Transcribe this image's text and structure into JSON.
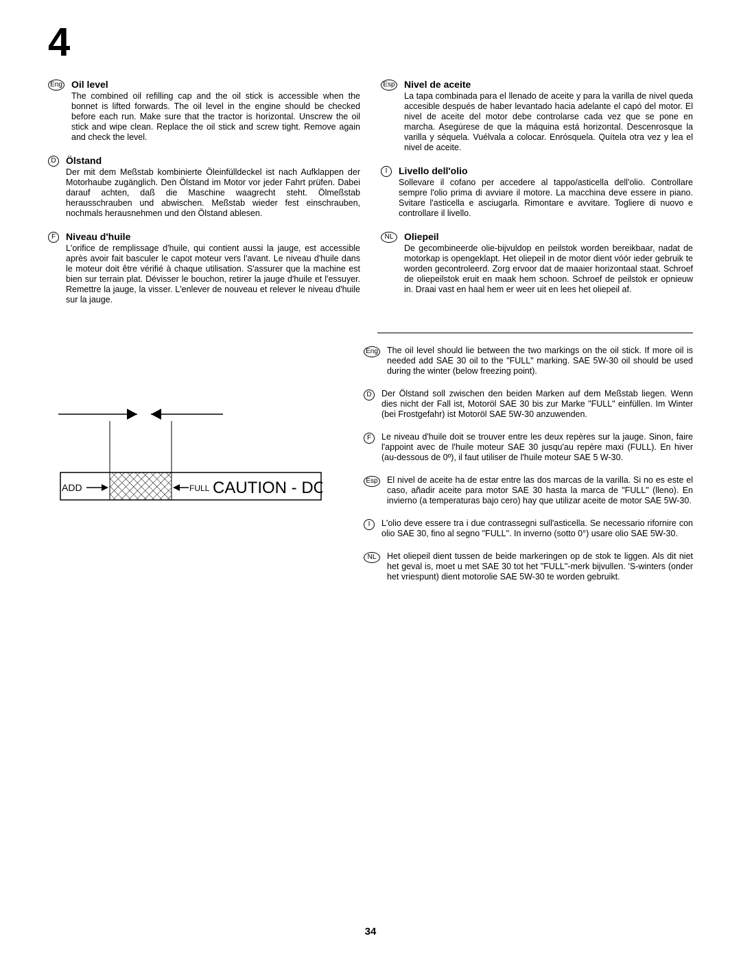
{
  "chapter": "4",
  "page_number": "34",
  "left_sections": [
    {
      "lang": "Eng",
      "shape": "oval",
      "heading": "Oil level",
      "text": "The combined oil refilling cap and the oil stick is accessible when the bonnet is lifted forwards. The oil level in the engine should be checked before each run. Make sure that the tractor is horizontal. Unscrew the oil stick and wipe clean. Replace the oil stick and screw tight. Remove again and check the level."
    },
    {
      "lang": "D",
      "shape": "round",
      "heading": "Ölstand",
      "text": "Der mit dem Meßstab kombinierte Öleinfülldeckel ist nach Aufklappen der Motorhaube zugänglich. Den Ölstand im Motor vor jeder Fahrt prüfen. Dabei darauf achten, daß die Maschine waagrecht steht. Ölmeßstab herausschrauben und abwischen. Meßstab wieder fest einschrauben, nochmals herausnehmen und den Ölstand ablesen."
    },
    {
      "lang": "F",
      "shape": "round",
      "heading": "Niveau d'huile",
      "text": "L'orifice de remplissage d'huile, qui contient aussi la jauge, est accessible après avoir fait basculer le capot moteur vers l'avant. Le niveau d'huile dans le moteur doit être vérifié à chaque utilisation. S'assurer que la machine est bien sur terrain plat. Dévisser le bouchon, retirer la jauge d'huile et l'essuyer. Remettre la jauge, la visser. L'enlever de nouveau et relever le niveau d'huile sur la jauge."
    }
  ],
  "right_sections": [
    {
      "lang": "Esp",
      "shape": "oval",
      "heading": "Nivel de aceite",
      "text": "La tapa combinada para el llenado de aceite y para la varilla de nivel queda accesible después de haber levantado hacia adelante el capó del motor. El nivel de aceite del motor debe controlarse cada vez que se pone en marcha. Asegúrese de que la máquina está horizontal. Descenrosque la varilla y séquela. Vuélvala a colocar. Enrósquela. Quítela otra vez y lea el nivel de aceite."
    },
    {
      "lang": "I",
      "shape": "round",
      "heading": "Livello dell'olio",
      "text": "Sollevare il cofano per accedere al tappo/asticella dell'olio. Controllare sempre l'olio prima di avviare il motore. La macchina deve essere in piano. Svitare l'asticella e asciugarla. Rimontare e avvitare. Togliere di nuovo e controllare il livello."
    },
    {
      "lang": "NL",
      "shape": "oval",
      "heading": "Oliepeil",
      "text": "De gecombineerde olie-bijvuldop en peilstok worden bereikbaar, nadat de motorkap is opengeklapt. Het oliepeil in de motor dient vóór ieder gebruik te worden gecontroleerd. Zorg ervoor dat de maaier horizontaal staat. Schroef de oliepeilstok eruit en maak hem schoon. Schroef de peilstok er opnieuw in. Draai vast en haal hem er weer uit en lees het oliepeil af."
    }
  ],
  "notes": [
    {
      "lang": "Eng",
      "shape": "oval",
      "text": "The oil level should lie between the two markings on the oil stick. If more oil is needed add SAE 30  oil to the \"FULL\" marking. SAE 5W-30 oil should be used during the winter (below freezing point)."
    },
    {
      "lang": "D",
      "shape": "round",
      "text": "Der Ölstand soll zwischen den beiden Marken auf dem Meßstab liegen. Wenn dies nicht der Fall ist, Motoröl SAE 30 bis zur Marke \"FULL\" einfüllen. Im Winter (bei Frostgefahr) ist Motoröl SAE 5W-30 anzuwenden."
    },
    {
      "lang": "F",
      "shape": "round",
      "text": "Le niveau d'huile doit se trouver entre les deux repères sur la jauge. Sinon, faire l'appoint avec de l'huile moteur SAE 30 jusqu'au repère maxi (FULL). En hiver (au-dessous de 0º), il faut utiliser de l'huile moteur SAE 5 W-30."
    },
    {
      "lang": "Esp",
      "shape": "oval",
      "text": "El nivel de aceite ha de estar entre las dos marcas de la varilla. Si no es este el caso, añadir aceite para motor SAE 30 hasta la marca de \"FULL\" (lleno). En invierno (a temperaturas bajo cero) hay que utilizar aceite de motor SAE 5W-30."
    },
    {
      "lang": "I",
      "shape": "round",
      "text": "L'olio deve essere tra i due contrassegni sull'asticella. Se necessario rifornire con olio SAE 30, fino al segno \"FULL\". In inverno (sotto 0°) usare olio SAE 5W-30."
    },
    {
      "lang": "NL",
      "shape": "oval",
      "text": "Het oliepeil dient tussen de beide markeringen op de stok te liggen. Als dit niet het geval is, moet u met SAE 30 tot het \"FULL\"-merk bijvullen. 'S-winters (onder het vriespunt) dient motorolie SAE 5W-30 te worden gebruikt."
    }
  ],
  "diagram": {
    "add_label": "ADD",
    "full_label": "FULL",
    "caution_text": "CAUTION - DO"
  }
}
